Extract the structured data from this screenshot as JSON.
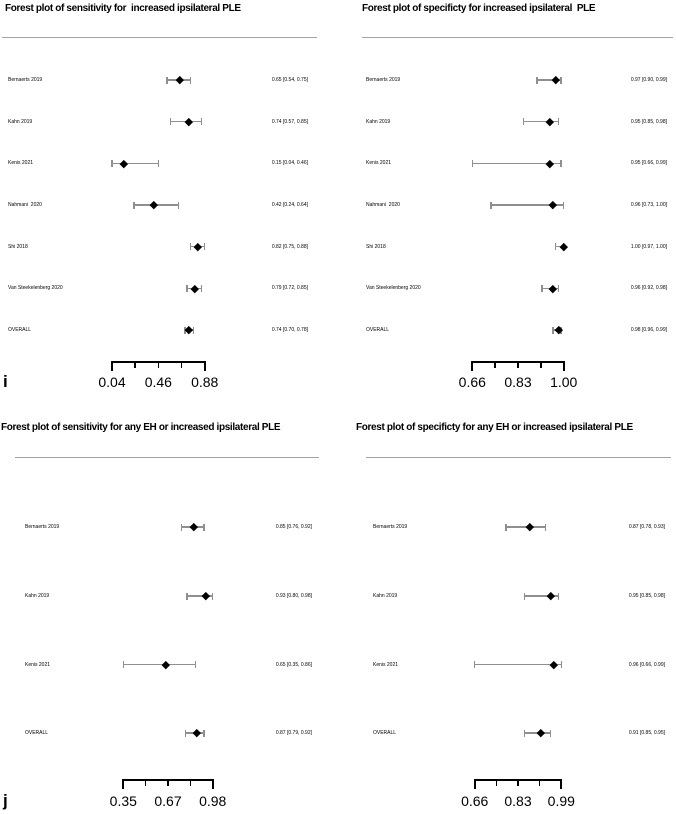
{
  "chart_data": [
    {
      "type": "forest",
      "position": "top-left",
      "title": "Forest plot of sensitivity for  increased ipsilateral PLE",
      "panel_letter": "i",
      "axis": {
        "min": 0.04,
        "max": 0.88,
        "n_ticks": 5,
        "tick_labels": [
          "0.04",
          "0.46",
          "0.88"
        ]
      },
      "studies": [
        {
          "label": "Bernaerts 2019",
          "estimate": 0.65,
          "ci_lower": 0.54,
          "ci_upper": 0.75,
          "ci_text": "0.65 [0.54, 0.75]"
        },
        {
          "label": "Kahn 2019",
          "estimate": 0.74,
          "ci_lower": 0.57,
          "ci_upper": 0.85,
          "ci_text": "0.74 [0.57, 0.85]"
        },
        {
          "label": "Kenis 2021",
          "estimate": 0.15,
          "ci_lower": 0.04,
          "ci_upper": 0.46,
          "ci_text": "0.15 [0.04, 0.46]"
        },
        {
          "label": "Nahmani  2020",
          "estimate": 0.42,
          "ci_lower": 0.24,
          "ci_upper": 0.64,
          "ci_text": "0.42 [0.24, 0.64]"
        },
        {
          "label": "Shi 2018",
          "estimate": 0.82,
          "ci_lower": 0.75,
          "ci_upper": 0.88,
          "ci_text": "0.82 [0.75, 0.88]"
        },
        {
          "label": "Van Steekelenberg 2020",
          "estimate": 0.79,
          "ci_lower": 0.72,
          "ci_upper": 0.85,
          "ci_text": "0.79 [0.72, 0.85]"
        },
        {
          "label": "OVERALL",
          "estimate": 0.74,
          "ci_lower": 0.7,
          "ci_upper": 0.78,
          "ci_text": "0.74 [0.70, 0.78]"
        }
      ]
    },
    {
      "type": "forest",
      "position": "top-right",
      "title": "Forest plot of specificty for increased ipsilateral  PLE",
      "panel_letter": "",
      "axis": {
        "min": 0.66,
        "max": 1.0,
        "n_ticks": 5,
        "tick_labels": [
          "0.66",
          "0.83",
          "1.00"
        ]
      },
      "studies": [
        {
          "label": "Bernaerts 2019",
          "estimate": 0.97,
          "ci_lower": 0.9,
          "ci_upper": 0.99,
          "ci_text": "0.97 [0.90, 0.99]"
        },
        {
          "label": "Kahn 2019",
          "estimate": 0.95,
          "ci_lower": 0.85,
          "ci_upper": 0.98,
          "ci_text": "0.95 [0.85, 0.98]"
        },
        {
          "label": "Kenis 2021",
          "estimate": 0.95,
          "ci_lower": 0.66,
          "ci_upper": 0.99,
          "ci_text": "0.95 [0.66, 0.99]"
        },
        {
          "label": "Nahmani  2020",
          "estimate": 0.96,
          "ci_lower": 0.73,
          "ci_upper": 1.0,
          "ci_text": "0.96 [0.73, 1.00]"
        },
        {
          "label": "Shi 2018",
          "estimate": 1.0,
          "ci_lower": 0.97,
          "ci_upper": 1.0,
          "ci_text": "1.00 [0.97, 1.00]"
        },
        {
          "label": "Van Steekelenberg 2020",
          "estimate": 0.96,
          "ci_lower": 0.92,
          "ci_upper": 0.98,
          "ci_text": "0.96 [0.92, 0.98]"
        },
        {
          "label": "OVERALL",
          "estimate": 0.98,
          "ci_lower": 0.96,
          "ci_upper": 0.99,
          "ci_text": "0.98 [0.96, 0.99]"
        }
      ]
    },
    {
      "type": "forest",
      "position": "bottom-left",
      "title": "Forest plot of sensitivity for any EH or increased ipsilateral PLE",
      "panel_letter": "j",
      "axis": {
        "min": 0.35,
        "max": 0.98,
        "n_ticks": 5,
        "tick_labels": [
          "0.35",
          "0.67",
          "0.98"
        ]
      },
      "studies": [
        {
          "label": "Bernaerts 2019",
          "estimate": 0.85,
          "ci_lower": 0.76,
          "ci_upper": 0.92,
          "ci_text": "0.85 [0.76, 0.92]"
        },
        {
          "label": "Kahn 2019",
          "estimate": 0.93,
          "ci_lower": 0.8,
          "ci_upper": 0.98,
          "ci_text": "0.93 [0.80, 0.98]"
        },
        {
          "label": "Kenis 2021",
          "estimate": 0.65,
          "ci_lower": 0.35,
          "ci_upper": 0.86,
          "ci_text": "0.65 [0.35, 0.86]"
        },
        {
          "label": "OVERALL",
          "estimate": 0.87,
          "ci_lower": 0.79,
          "ci_upper": 0.92,
          "ci_text": "0.87 [0.79, 0.92]"
        }
      ]
    },
    {
      "type": "forest",
      "position": "bottom-right",
      "title": "Forest plot of specificty for any EH or increased ipsilateral PLE",
      "panel_letter": "",
      "axis": {
        "min": 0.66,
        "max": 0.99,
        "n_ticks": 5,
        "tick_labels": [
          "0.66",
          "0.83",
          "0.99"
        ]
      },
      "studies": [
        {
          "label": "Bernaerts 2019",
          "estimate": 0.87,
          "ci_lower": 0.78,
          "ci_upper": 0.93,
          "ci_text": "0.87 [0.78, 0.93]"
        },
        {
          "label": "Kahn 2019",
          "estimate": 0.95,
          "ci_lower": 0.85,
          "ci_upper": 0.98,
          "ci_text": "0.95 [0.85, 0.98]"
        },
        {
          "label": "Kenis 2021",
          "estimate": 0.96,
          "ci_lower": 0.66,
          "ci_upper": 0.99,
          "ci_text": "0.96 [0.66, 0.99]"
        },
        {
          "label": "OVERALL",
          "estimate": 0.91,
          "ci_lower": 0.85,
          "ci_upper": 0.95,
          "ci_text": "0.91 [0.85, 0.95]"
        }
      ]
    }
  ]
}
